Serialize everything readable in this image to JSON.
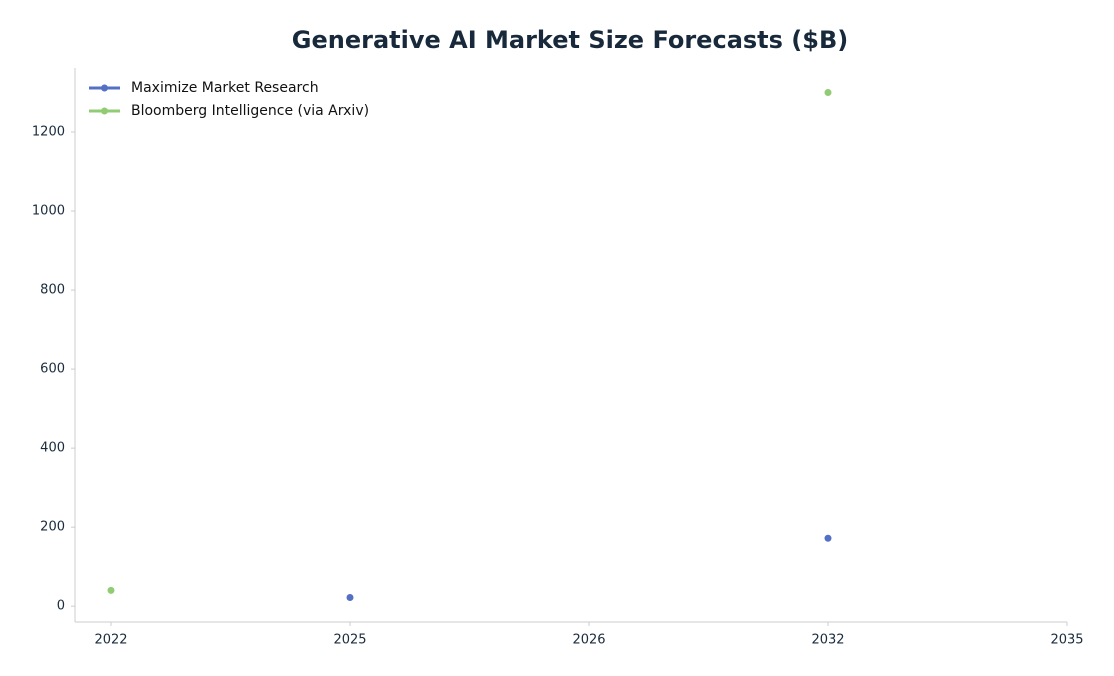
{
  "chart_data": {
    "type": "line",
    "title": "Generative AI Market Size Forecasts ($B)",
    "categories": [
      "2022",
      "2025",
      "2026",
      "2032",
      "2035"
    ],
    "series": [
      {
        "name": "Maximize Market Research",
        "color": "#5470c6",
        "values": [
          null,
          22,
          null,
          172,
          null
        ]
      },
      {
        "name": "Bloomberg Intelligence (via Arxiv)",
        "color": "#91cc75",
        "values": [
          40,
          null,
          null,
          1300,
          null
        ]
      }
    ],
    "ylim": [
      -40,
      1362
    ],
    "yticks": [
      0,
      200,
      400,
      600,
      800,
      1000,
      1200
    ],
    "grid": false,
    "legend": "upper left"
  }
}
